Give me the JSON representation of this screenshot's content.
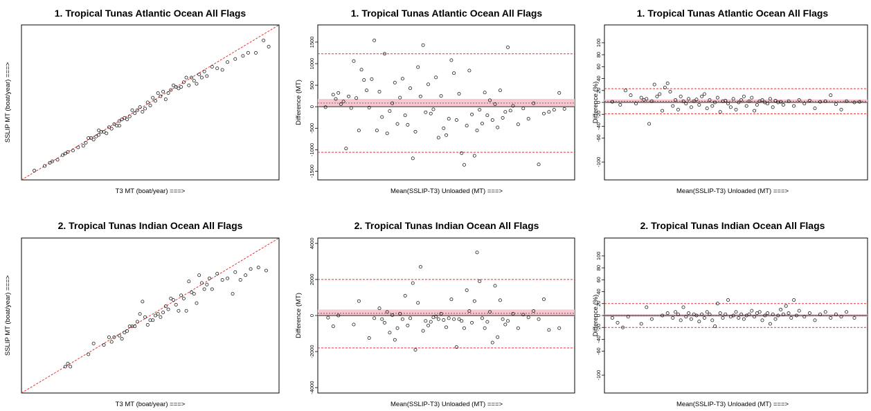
{
  "chart_data": [
    {
      "type": "scatter",
      "title": "1. Tropical Tunas Atlantic Ocean All Flags",
      "xlabel": "T3 MT (boat/year) ===>",
      "ylabel": "SSLIP MT (boat/year) ===>",
      "axes_ticks": false,
      "reference_line": "y = x",
      "xlim": [
        0,
        100
      ],
      "ylim": [
        0,
        100
      ],
      "x": [
        5,
        9,
        11,
        12,
        14,
        16,
        17,
        18,
        20,
        22,
        24,
        25,
        26,
        27,
        28,
        29,
        30,
        30,
        31,
        32,
        33,
        34,
        35,
        36,
        37,
        38,
        38,
        39,
        40,
        41,
        42,
        43,
        44,
        45,
        46,
        47,
        48,
        49,
        50,
        51,
        52,
        53,
        54,
        55,
        56,
        57,
        58,
        59,
        60,
        61,
        62,
        63,
        64,
        65,
        66,
        67,
        68,
        69,
        70,
        71,
        72,
        74,
        76,
        78,
        80,
        83,
        86,
        88,
        91,
        94,
        96
      ],
      "y": [
        6,
        9,
        11,
        12,
        13,
        16,
        17,
        18,
        19,
        21,
        22,
        24,
        27,
        27,
        26,
        28,
        32,
        29,
        31,
        31,
        30,
        34,
        33,
        36,
        35,
        38,
        35,
        39,
        40,
        39,
        41,
        45,
        43,
        45,
        47,
        44,
        46,
        50,
        48,
        53,
        51,
        56,
        54,
        57,
        52,
        56,
        58,
        61,
        60,
        59,
        60,
        63,
        66,
        61,
        66,
        64,
        62,
        68,
        66,
        70,
        67,
        73,
        72,
        71,
        76,
        78,
        80,
        82,
        82,
        90,
        86
      ]
    },
    {
      "type": "scatter",
      "title": "1. Tropical Tunas Atlantic Ocean All Flags",
      "xlabel": "Mean(SSLIP-T3) Unloaded (MT) ===>",
      "ylabel": "Difference (MT)",
      "axes_ticks": false,
      "ylim": [
        -1700,
        1900
      ],
      "yticks": [
        -1500,
        -1000,
        -500,
        0,
        500,
        1000,
        1500
      ],
      "mean_line": 85,
      "ci_band": [
        0,
        180
      ],
      "limits": [
        1230,
        -1060
      ],
      "xlim": [
        0,
        100
      ],
      "x": [
        3,
        6,
        7,
        8,
        9,
        10,
        11,
        12,
        13,
        14,
        15,
        16,
        17,
        18,
        19,
        20,
        21,
        22,
        23,
        24,
        25,
        26,
        27,
        28,
        29,
        30,
        31,
        32,
        33,
        34,
        35,
        36,
        37,
        38,
        39,
        40,
        41,
        42,
        43,
        44,
        45,
        46,
        47,
        48,
        49,
        50,
        51,
        52,
        53,
        54,
        55,
        56,
        57,
        58,
        59,
        60,
        61,
        62,
        63,
        64,
        65,
        66,
        67,
        68,
        69,
        70,
        71,
        72,
        73,
        74,
        75,
        76,
        78,
        80,
        82,
        84,
        86,
        88,
        90,
        92,
        94,
        96
      ],
      "y": [
        -10,
        280,
        180,
        320,
        60,
        120,
        -970,
        240,
        -30,
        1060,
        200,
        -550,
        860,
        620,
        380,
        -20,
        640,
        1540,
        -550,
        350,
        -240,
        1230,
        -620,
        -100,
        80,
        560,
        -400,
        210,
        650,
        -200,
        -420,
        430,
        -1200,
        -580,
        920,
        240,
        1430,
        -130,
        520,
        -160,
        -60,
        680,
        -720,
        250,
        -500,
        -660,
        -280,
        1080,
        780,
        -310,
        300,
        -1080,
        -1350,
        -440,
        840,
        -180,
        -1140,
        -550,
        -70,
        -390,
        330,
        -200,
        150,
        -310,
        60,
        -480,
        380,
        -260,
        -120,
        1380,
        -90,
        20,
        -410,
        -40,
        -280,
        80,
        -1340,
        -160,
        -120,
        -70,
        320,
        -50
      ]
    },
    {
      "type": "scatter",
      "title": "1. Tropical Tunas Atlantic Ocean All Flags",
      "xlabel": "Mean(SSLIP-T3) Unloaded (MT) ===>",
      "ylabel": "Difference (%)",
      "axes_ticks": false,
      "ylim": [
        -130,
        130
      ],
      "yticks": [
        -100,
        -60,
        -40,
        -20,
        0,
        20,
        40,
        60,
        80,
        100
      ],
      "mean_line": 2,
      "ci_band": [
        -1,
        5
      ],
      "limits": [
        23,
        -19
      ],
      "xlim": [
        0,
        100
      ],
      "x": [
        3,
        6,
        8,
        10,
        12,
        14,
        15,
        16,
        17,
        18,
        19,
        20,
        21,
        22,
        23,
        24,
        25,
        26,
        27,
        28,
        29,
        30,
        31,
        32,
        33,
        34,
        35,
        36,
        37,
        38,
        39,
        40,
        41,
        42,
        43,
        44,
        45,
        46,
        47,
        48,
        49,
        50,
        51,
        52,
        53,
        54,
        55,
        56,
        57,
        58,
        59,
        60,
        61,
        62,
        63,
        64,
        65,
        66,
        67,
        68,
        70,
        72,
        74,
        76,
        78,
        80,
        82,
        84,
        86,
        88,
        90,
        92,
        95,
        97
      ],
      "y": [
        1,
        -4,
        20,
        12,
        -2,
        8,
        4,
        6,
        -36,
        2,
        30,
        10,
        14,
        -14,
        25,
        32,
        18,
        -6,
        4,
        -12,
        10,
        2,
        -2,
        6,
        -8,
        2,
        5,
        -4,
        10,
        14,
        -10,
        4,
        -6,
        0,
        8,
        -16,
        2,
        3,
        -2,
        -8,
        6,
        -12,
        0,
        4,
        10,
        -6,
        2,
        8,
        -14,
        -4,
        2,
        4,
        0,
        -2,
        6,
        -8,
        3,
        0,
        1,
        -4,
        2,
        -6,
        4,
        -2,
        3,
        -10,
        1,
        2,
        12,
        -3,
        -12,
        2,
        0,
        1
      ]
    },
    {
      "type": "scatter",
      "title": "2. Tropical Tunas Indian Ocean All Flags",
      "xlabel": "T3 MT (boat/year) ===>",
      "ylabel": "SSLIP MT (boat/year) ===>",
      "axes_ticks": false,
      "reference_line": "y = x",
      "xlim": [
        0,
        100
      ],
      "ylim": [
        0,
        100
      ],
      "x": [
        17,
        18,
        19,
        26,
        28,
        32,
        34,
        35,
        36,
        38,
        39,
        40,
        41,
        42,
        43,
        44,
        45,
        46,
        47,
        48,
        49,
        50,
        51,
        52,
        53,
        54,
        55,
        56,
        57,
        58,
        59,
        60,
        61,
        62,
        63,
        64,
        65,
        66,
        67,
        68,
        69,
        70,
        71,
        72,
        73,
        74,
        76,
        78,
        80,
        82,
        83,
        85,
        87,
        89,
        92,
        95
      ],
      "y": [
        17,
        19,
        17,
        25,
        32,
        31,
        36,
        33,
        36,
        37,
        35,
        39,
        40,
        43,
        43,
        43,
        46,
        51,
        59,
        49,
        44,
        47,
        47,
        50,
        51,
        49,
        52,
        56,
        54,
        61,
        60,
        57,
        53,
        63,
        61,
        53,
        72,
        65,
        64,
        58,
        76,
        71,
        67,
        70,
        74,
        67,
        77,
        73,
        74,
        64,
        78,
        73,
        76,
        80,
        81,
        79
      ]
    },
    {
      "type": "scatter",
      "title": "2. Tropical Tunas Indian Ocean All Flags",
      "xlabel": "Mean(SSLIP-T3) Unloaded (MT) ===>",
      "ylabel": "Difference (MT)",
      "axes_ticks": false,
      "ylim": [
        -4300,
        4300
      ],
      "yticks": [
        -4000,
        -2000,
        0,
        2000,
        4000
      ],
      "mean_line": 120,
      "ci_band": [
        -40,
        330
      ],
      "limits": [
        2000,
        -1800
      ],
      "xlim": [
        0,
        100
      ],
      "x": [
        4,
        6,
        8,
        14,
        16,
        20,
        22,
        24,
        25,
        26,
        27,
        28,
        29,
        30,
        31,
        32,
        33,
        34,
        35,
        36,
        37,
        38,
        39,
        40,
        41,
        42,
        43,
        44,
        45,
        46,
        47,
        48,
        49,
        50,
        51,
        52,
        53,
        54,
        55,
        56,
        57,
        58,
        59,
        60,
        61,
        62,
        63,
        64,
        65,
        66,
        67,
        68,
        69,
        70,
        71,
        72,
        73,
        74,
        76,
        78,
        80,
        82,
        84,
        86,
        88,
        90,
        94
      ],
      "y": [
        -120,
        -600,
        0,
        -500,
        800,
        -1250,
        -150,
        400,
        -200,
        -400,
        200,
        -950,
        20,
        -1350,
        -700,
        100,
        -200,
        1100,
        -550,
        -150,
        1800,
        -1900,
        700,
        2700,
        -850,
        -300,
        -550,
        -350,
        -100,
        -50,
        -200,
        100,
        -250,
        -650,
        -150,
        900,
        -200,
        -1750,
        -200,
        -300,
        -700,
        1400,
        250,
        -400,
        800,
        3500,
        1900,
        -150,
        -700,
        -350,
        200,
        -1500,
        1650,
        -1200,
        850,
        -200,
        -500,
        -300,
        100,
        -700,
        50,
        -100,
        250,
        -200,
        900,
        -800,
        -700
      ]
    },
    {
      "type": "scatter",
      "title": "2. Tropical Tunas Indian Ocean All Flags",
      "xlabel": "Mean(SSLIP-T3) Unloaded (MT) ===>",
      "ylabel": "Difference (%)",
      "axes_ticks": false,
      "ylim": [
        -130,
        130
      ],
      "yticks": [
        -100,
        -60,
        -40,
        -20,
        0,
        20,
        40,
        60,
        80,
        100
      ],
      "mean_line": 0,
      "ci_band": [
        -2,
        2
      ],
      "limits": [
        20,
        -20
      ],
      "xlim": [
        0,
        100
      ],
      "x": [
        3,
        5,
        7,
        9,
        14,
        16,
        18,
        22,
        24,
        26,
        27,
        28,
        29,
        30,
        31,
        32,
        33,
        34,
        35,
        36,
        37,
        38,
        39,
        40,
        41,
        42,
        43,
        44,
        45,
        46,
        47,
        48,
        49,
        50,
        51,
        52,
        53,
        54,
        55,
        56,
        57,
        58,
        59,
        60,
        61,
        62,
        63,
        64,
        65,
        66,
        67,
        68,
        69,
        70,
        71,
        72,
        73,
        74,
        76,
        78,
        80,
        82,
        84,
        86,
        88,
        90,
        92,
        95
      ],
      "y": [
        -4,
        -12,
        -20,
        -2,
        -14,
        14,
        -6,
        0,
        4,
        -4,
        6,
        2,
        -8,
        14,
        -2,
        4,
        -6,
        2,
        0,
        -10,
        2,
        -4,
        6,
        2,
        -8,
        -18,
        20,
        4,
        -4,
        2,
        26,
        -2,
        0,
        6,
        -4,
        2,
        -6,
        0,
        2,
        8,
        -2,
        4,
        6,
        -8,
        0,
        4,
        -14,
        2,
        -6,
        0,
        10,
        2,
        16,
        4,
        -4,
        26,
        0,
        8,
        -2,
        4,
        -8,
        2,
        6,
        -4,
        2,
        -2,
        6,
        -4
      ]
    }
  ]
}
